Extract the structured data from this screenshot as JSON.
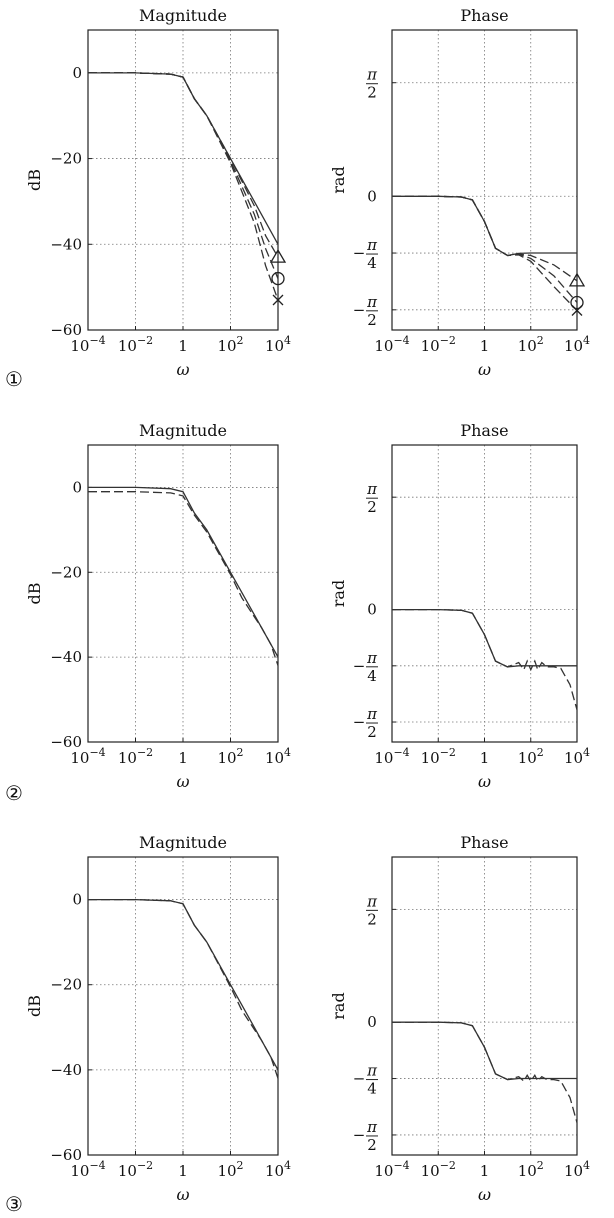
{
  "chart_data": [
    {
      "type": "line",
      "panel": "1",
      "title": "Magnitude",
      "xlabel": "ω",
      "ylabel": "dB",
      "x_scale": "log",
      "xlim": [
        0.0001,
        10000
      ],
      "ylim": [
        -60,
        10
      ],
      "x_ticks": [
        {
          "value": 0.0001,
          "base": "10",
          "exp": "−4"
        },
        {
          "value": 0.01,
          "base": "10",
          "exp": "−2"
        },
        {
          "value": 1,
          "base": "1",
          "exp": ""
        },
        {
          "value": 100,
          "base": "10",
          "exp": "2"
        },
        {
          "value": 10000,
          "base": "10",
          "exp": "4"
        }
      ],
      "y_ticks": [
        {
          "value": 0,
          "label": "0"
        },
        {
          "value": -20,
          "label": "−20"
        },
        {
          "value": -40,
          "label": "−40"
        },
        {
          "value": -60,
          "label": "−60"
        }
      ],
      "grid": true,
      "series": [
        {
          "style": "solid",
          "x": [
            0.0001,
            0.01,
            0.3,
            1,
            3,
            10,
            100,
            1000,
            10000
          ],
          "y": [
            0,
            0,
            -0.3,
            -1,
            -6,
            -10,
            -20,
            -30,
            -40
          ]
        },
        {
          "style": "dashed",
          "marker": "triangle",
          "x": [
            0.0001,
            0.01,
            0.3,
            1,
            3,
            10,
            100,
            1000,
            3000,
            10000
          ],
          "y": [
            0,
            0,
            -0.3,
            -1,
            -6,
            -10,
            -20,
            -31,
            -38,
            -43
          ]
        },
        {
          "style": "dashed",
          "marker": "circle",
          "x": [
            0.0001,
            0.01,
            0.3,
            1,
            3,
            10,
            100,
            1000,
            3000,
            10000
          ],
          "y": [
            0,
            0,
            -0.3,
            -1,
            -6,
            -10,
            -20.5,
            -33,
            -41,
            -48
          ]
        },
        {
          "style": "dashed",
          "marker": "cross",
          "x": [
            0.0001,
            0.01,
            0.3,
            1,
            3,
            10,
            100,
            1000,
            3000,
            10000
          ],
          "y": [
            0,
            0,
            -0.3,
            -1,
            -6,
            -10,
            -21,
            -35,
            -45,
            -53
          ]
        }
      ]
    },
    {
      "type": "line",
      "panel": "1",
      "title": "Phase",
      "xlabel": "ω",
      "ylabel": "rad",
      "x_scale": "log",
      "xlim": [
        0.0001,
        10000
      ],
      "ylim": [
        -1.85,
        2.3
      ],
      "x_ticks": [
        {
          "value": 0.0001,
          "base": "10",
          "exp": "−4"
        },
        {
          "value": 0.01,
          "base": "10",
          "exp": "−2"
        },
        {
          "value": 1,
          "base": "1",
          "exp": ""
        },
        {
          "value": 100,
          "base": "10",
          "exp": "2"
        },
        {
          "value": 10000,
          "base": "10",
          "exp": "4"
        }
      ],
      "y_ticks": [
        {
          "value": 1.5708,
          "sign": "",
          "num": "π",
          "den": "2"
        },
        {
          "value": 0,
          "sign": "",
          "num": "0",
          "den": ""
        },
        {
          "value": -0.7854,
          "sign": "−",
          "num": "π",
          "den": "4"
        },
        {
          "value": -1.5708,
          "sign": "−",
          "num": "π",
          "den": "2"
        }
      ],
      "grid": true,
      "series": [
        {
          "style": "solid",
          "x": [
            0.0001,
            0.01,
            0.1,
            0.3,
            1,
            3,
            10,
            30,
            100,
            1000,
            10000
          ],
          "y": [
            0,
            0,
            -0.01,
            -0.05,
            -0.35,
            -0.72,
            -0.82,
            -0.79,
            -0.785,
            -0.785,
            -0.785
          ]
        },
        {
          "style": "dashed",
          "marker": "triangle",
          "x": [
            0.0001,
            0.01,
            0.1,
            0.3,
            1,
            3,
            10,
            30,
            100,
            1000,
            10000
          ],
          "y": [
            0,
            0,
            -0.01,
            -0.05,
            -0.35,
            -0.72,
            -0.82,
            -0.8,
            -0.82,
            -0.95,
            -1.17
          ]
        },
        {
          "style": "dashed",
          "marker": "circle",
          "x": [
            0.0001,
            0.01,
            0.1,
            0.3,
            1,
            3,
            10,
            30,
            100,
            1000,
            10000
          ],
          "y": [
            0,
            0,
            -0.01,
            -0.05,
            -0.35,
            -0.72,
            -0.82,
            -0.8,
            -0.86,
            -1.1,
            -1.47
          ]
        },
        {
          "style": "dashed",
          "marker": "cross",
          "x": [
            0.0001,
            0.01,
            0.1,
            0.3,
            1,
            3,
            10,
            30,
            100,
            1000,
            10000
          ],
          "y": [
            0,
            0,
            -0.01,
            -0.05,
            -0.35,
            -0.72,
            -0.82,
            -0.81,
            -0.9,
            -1.25,
            -1.58
          ]
        }
      ]
    },
    {
      "type": "line",
      "panel": "2",
      "title": "Magnitude",
      "xlabel": "ω",
      "ylabel": "dB",
      "x_scale": "log",
      "xlim": [
        0.0001,
        10000
      ],
      "ylim": [
        -60,
        10
      ],
      "x_ticks": [
        {
          "value": 0.0001,
          "base": "10",
          "exp": "−4"
        },
        {
          "value": 0.01,
          "base": "10",
          "exp": "−2"
        },
        {
          "value": 1,
          "base": "1",
          "exp": ""
        },
        {
          "value": 100,
          "base": "10",
          "exp": "2"
        },
        {
          "value": 10000,
          "base": "10",
          "exp": "4"
        }
      ],
      "y_ticks": [
        {
          "value": 0,
          "label": "0"
        },
        {
          "value": -20,
          "label": "−20"
        },
        {
          "value": -40,
          "label": "−40"
        },
        {
          "value": -60,
          "label": "−60"
        }
      ],
      "grid": true,
      "series": [
        {
          "style": "solid",
          "x": [
            0.0001,
            0.01,
            0.3,
            1,
            3,
            10,
            100,
            1000,
            10000
          ],
          "y": [
            0,
            0,
            -0.3,
            -1,
            -6,
            -10,
            -20,
            -30,
            -40
          ]
        },
        {
          "style": "dashed",
          "x": [
            0.0001,
            0.01,
            0.3,
            1,
            3,
            10,
            100,
            300,
            1000,
            2000,
            5000,
            10000
          ],
          "y": [
            -1,
            -1,
            -1.3,
            -2,
            -6.5,
            -10.5,
            -20.5,
            -26,
            -30.5,
            -33,
            -37,
            -42
          ]
        }
      ]
    },
    {
      "type": "line",
      "panel": "2",
      "title": "Phase",
      "xlabel": "ω",
      "ylabel": "rad",
      "x_scale": "log",
      "xlim": [
        0.0001,
        10000
      ],
      "ylim": [
        -1.85,
        2.3
      ],
      "x_ticks": [
        {
          "value": 0.0001,
          "base": "10",
          "exp": "−4"
        },
        {
          "value": 0.01,
          "base": "10",
          "exp": "−2"
        },
        {
          "value": 1,
          "base": "1",
          "exp": ""
        },
        {
          "value": 100,
          "base": "10",
          "exp": "2"
        },
        {
          "value": 10000,
          "base": "10",
          "exp": "4"
        }
      ],
      "y_ticks": [
        {
          "value": 1.5708,
          "sign": "",
          "num": "π",
          "den": "2"
        },
        {
          "value": 0,
          "sign": "",
          "num": "0",
          "den": ""
        },
        {
          "value": -0.7854,
          "sign": "−",
          "num": "π",
          "den": "4"
        },
        {
          "value": -1.5708,
          "sign": "−",
          "num": "π",
          "den": "2"
        }
      ],
      "grid": true,
      "series": [
        {
          "style": "solid",
          "x": [
            0.0001,
            0.01,
            0.1,
            0.3,
            1,
            3,
            10,
            30,
            100,
            1000,
            10000
          ],
          "y": [
            0,
            0,
            -0.01,
            -0.05,
            -0.35,
            -0.72,
            -0.8,
            -0.785,
            -0.785,
            -0.785,
            -0.785
          ]
        },
        {
          "style": "dashed",
          "x": [
            0.0001,
            0.01,
            0.1,
            0.3,
            1,
            3,
            10,
            30,
            50,
            70,
            100,
            150,
            200,
            300,
            500,
            1000,
            2000,
            5000,
            10000
          ],
          "y": [
            0,
            0,
            -0.01,
            -0.05,
            -0.35,
            -0.72,
            -0.8,
            -0.74,
            -0.84,
            -0.72,
            -0.84,
            -0.72,
            -0.84,
            -0.74,
            -0.8,
            -0.8,
            -0.82,
            -1.05,
            -1.4
          ]
        }
      ]
    },
    {
      "type": "line",
      "panel": "3",
      "title": "Magnitude",
      "xlabel": "ω",
      "ylabel": "dB",
      "x_scale": "log",
      "xlim": [
        0.0001,
        10000
      ],
      "ylim": [
        -60,
        10
      ],
      "x_ticks": [
        {
          "value": 0.0001,
          "base": "10",
          "exp": "−4"
        },
        {
          "value": 0.01,
          "base": "10",
          "exp": "−2"
        },
        {
          "value": 1,
          "base": "1",
          "exp": ""
        },
        {
          "value": 100,
          "base": "10",
          "exp": "2"
        },
        {
          "value": 10000,
          "base": "10",
          "exp": "4"
        }
      ],
      "y_ticks": [
        {
          "value": 0,
          "label": "0"
        },
        {
          "value": -20,
          "label": "−20"
        },
        {
          "value": -40,
          "label": "−40"
        },
        {
          "value": -60,
          "label": "−60"
        }
      ],
      "grid": true,
      "series": [
        {
          "style": "solid",
          "x": [
            0.0001,
            0.01,
            0.3,
            1,
            3,
            10,
            100,
            1000,
            10000
          ],
          "y": [
            0,
            0,
            -0.3,
            -1,
            -6,
            -10,
            -20,
            -30,
            -40
          ]
        },
        {
          "style": "dashed",
          "x": [
            0.0001,
            0.01,
            0.3,
            1,
            3,
            10,
            100,
            300,
            1000,
            2000,
            5000,
            10000
          ],
          "y": [
            0,
            0,
            -0.3,
            -1,
            -6,
            -10,
            -20.5,
            -26,
            -30.5,
            -33,
            -37,
            -42
          ]
        }
      ]
    },
    {
      "type": "line",
      "panel": "3",
      "title": "Phase",
      "xlabel": "ω",
      "ylabel": "rad",
      "x_scale": "log",
      "xlim": [
        0.0001,
        10000
      ],
      "ylim": [
        -1.85,
        2.3
      ],
      "x_ticks": [
        {
          "value": 0.0001,
          "base": "10",
          "exp": "−4"
        },
        {
          "value": 0.01,
          "base": "10",
          "exp": "−2"
        },
        {
          "value": 1,
          "base": "1",
          "exp": ""
        },
        {
          "value": 100,
          "base": "10",
          "exp": "2"
        },
        {
          "value": 10000,
          "base": "10",
          "exp": "4"
        }
      ],
      "y_ticks": [
        {
          "value": 1.5708,
          "sign": "",
          "num": "π",
          "den": "2"
        },
        {
          "value": 0,
          "sign": "",
          "num": "0",
          "den": ""
        },
        {
          "value": -0.7854,
          "sign": "−",
          "num": "π",
          "den": "4"
        },
        {
          "value": -1.5708,
          "sign": "−",
          "num": "π",
          "den": "2"
        }
      ],
      "grid": true,
      "series": [
        {
          "style": "solid",
          "x": [
            0.0001,
            0.01,
            0.1,
            0.3,
            1,
            3,
            10,
            30,
            100,
            1000,
            10000
          ],
          "y": [
            0,
            0,
            -0.01,
            -0.05,
            -0.35,
            -0.72,
            -0.8,
            -0.785,
            -0.785,
            -0.785,
            -0.785
          ]
        },
        {
          "style": "dashed",
          "x": [
            0.0001,
            0.01,
            0.1,
            0.3,
            1,
            3,
            10,
            30,
            50,
            70,
            100,
            150,
            200,
            300,
            500,
            1000,
            2000,
            5000,
            10000
          ],
          "y": [
            0,
            0,
            -0.01,
            -0.05,
            -0.35,
            -0.72,
            -0.8,
            -0.76,
            -0.82,
            -0.74,
            -0.82,
            -0.74,
            -0.82,
            -0.76,
            -0.8,
            -0.8,
            -0.82,
            -1.05,
            -1.4
          ]
        }
      ]
    }
  ],
  "panel_labels": [
    "①",
    "②",
    "③"
  ]
}
